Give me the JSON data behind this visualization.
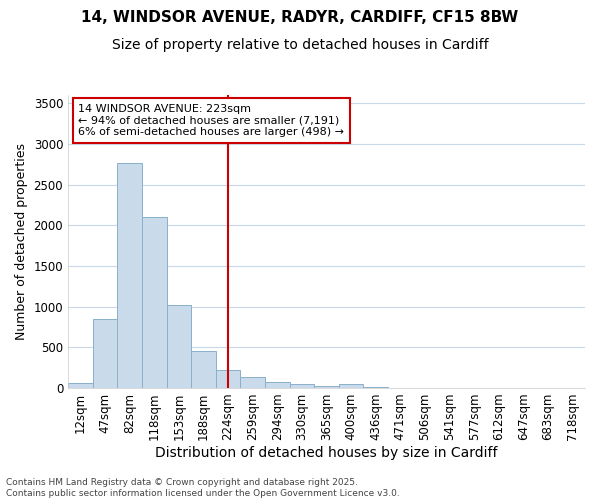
{
  "title_line1": "14, WINDSOR AVENUE, RADYR, CARDIFF, CF15 8BW",
  "title_line2": "Size of property relative to detached houses in Cardiff",
  "xlabel": "Distribution of detached houses by size in Cardiff",
  "ylabel": "Number of detached properties",
  "categories": [
    "12sqm",
    "47sqm",
    "82sqm",
    "118sqm",
    "153sqm",
    "188sqm",
    "224sqm",
    "259sqm",
    "294sqm",
    "330sqm",
    "365sqm",
    "400sqm",
    "436sqm",
    "471sqm",
    "506sqm",
    "541sqm",
    "577sqm",
    "612sqm",
    "647sqm",
    "683sqm",
    "718sqm"
  ],
  "values": [
    55,
    850,
    2770,
    2100,
    1020,
    460,
    220,
    140,
    75,
    45,
    20,
    50,
    8,
    3,
    2,
    1,
    0,
    0,
    0,
    0,
    0
  ],
  "bar_color": "#c9daea",
  "bar_edgecolor": "#8ab0cc",
  "marker_index": 6,
  "marker_color": "#cc0000",
  "ylim": [
    0,
    3600
  ],
  "yticks": [
    0,
    500,
    1000,
    1500,
    2000,
    2500,
    3000,
    3500
  ],
  "annotation_text": "14 WINDSOR AVENUE: 223sqm\n← 94% of detached houses are smaller (7,191)\n6% of semi-detached houses are larger (498) →",
  "annotation_box_color": "#ffffff",
  "annotation_box_edge": "#cc0000",
  "footer_line1": "Contains HM Land Registry data © Crown copyright and database right 2025.",
  "footer_line2": "Contains public sector information licensed under the Open Government Licence v3.0.",
  "background_color": "#ffffff",
  "grid_color": "#c8d8e8",
  "title1_fontsize": 11,
  "title2_fontsize": 10,
  "xlabel_fontsize": 10,
  "ylabel_fontsize": 9,
  "tick_fontsize": 8.5,
  "annotation_fontsize": 8,
  "footer_fontsize": 6.5
}
